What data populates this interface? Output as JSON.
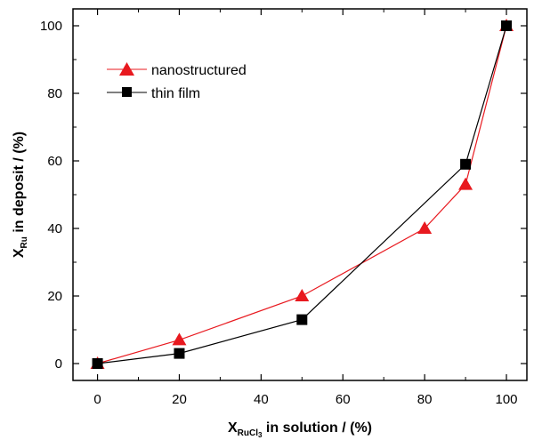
{
  "chart_data": {
    "type": "line",
    "title": "",
    "xlabel": {
      "main": "X",
      "subscript": "RuCl",
      "subsub": "3",
      "rest": " in solution  /  (%)"
    },
    "ylabel": {
      "main": "X",
      "subscript": "Ru",
      "rest": " in deposit  /  (%)"
    },
    "xlim": [
      -6,
      105
    ],
    "ylim": [
      -5,
      105
    ],
    "x_ticks": [
      0,
      20,
      40,
      60,
      80,
      100
    ],
    "y_ticks": [
      0,
      20,
      40,
      60,
      80,
      100
    ],
    "x_tick_labels": [
      "0",
      "20",
      "40",
      "60",
      "80",
      "100"
    ],
    "y_tick_labels": [
      "0",
      "20",
      "40",
      "60",
      "80",
      "100"
    ],
    "grid": false,
    "legend_position": "top-left",
    "series": [
      {
        "name": "nanostructured",
        "marker": "triangle",
        "color": "#e8191f",
        "x": [
          0,
          20,
          50,
          80,
          90,
          100
        ],
        "y": [
          0,
          7,
          20,
          40,
          53,
          100
        ]
      },
      {
        "name": "thin film",
        "marker": "square",
        "color": "#000000",
        "x": [
          0,
          20,
          50,
          90,
          100
        ],
        "y": [
          0,
          3,
          13,
          59,
          100
        ]
      }
    ]
  }
}
